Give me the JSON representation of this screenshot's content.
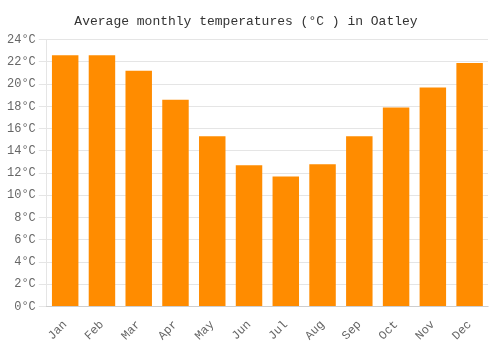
{
  "chart_data": {
    "type": "bar",
    "title": "Average monthly temperatures (°C ) in Oatley",
    "categories": [
      "Jan",
      "Feb",
      "Mar",
      "Apr",
      "May",
      "Jun",
      "Jul",
      "Aug",
      "Sep",
      "Oct",
      "Nov",
      "Dec"
    ],
    "values": [
      22.6,
      22.6,
      21.2,
      18.6,
      15.3,
      12.7,
      11.7,
      12.8,
      15.3,
      17.9,
      19.7,
      21.9
    ],
    "color": "#FF8C00",
    "ylim": [
      0,
      24
    ],
    "yticks": [
      {
        "value": 0,
        "label": "0°C"
      },
      {
        "value": 2,
        "label": "2°C"
      },
      {
        "value": 4,
        "label": "4°C"
      },
      {
        "value": 6,
        "label": "6°C"
      },
      {
        "value": 8,
        "label": "8°C"
      },
      {
        "value": 10,
        "label": "10°C"
      },
      {
        "value": 12,
        "label": "12°C"
      },
      {
        "value": 14,
        "label": "14°C"
      },
      {
        "value": 16,
        "label": "16°C"
      },
      {
        "value": 18,
        "label": "18°C"
      },
      {
        "value": 20,
        "label": "20°C"
      },
      {
        "value": 22,
        "label": "22°C"
      },
      {
        "value": 24,
        "label": "24°C"
      }
    ],
    "grid": true
  }
}
